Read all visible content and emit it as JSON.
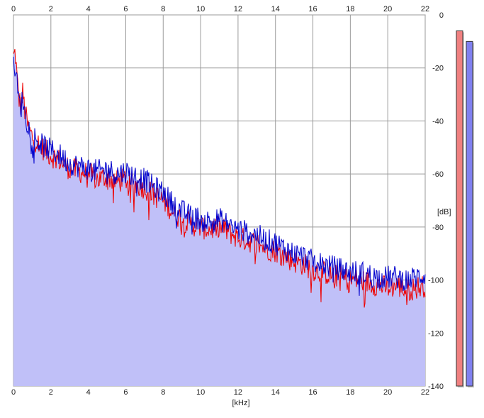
{
  "chart_data": {
    "type": "line",
    "title": "",
    "xlabel": "[kHz]",
    "ylabel": "[dB]",
    "xlim": [
      0,
      22
    ],
    "ylim": [
      -140,
      0
    ],
    "x_ticks": [
      "0",
      "2",
      "4",
      "6",
      "8",
      "10",
      "12",
      "14",
      "16",
      "18",
      "20",
      "22"
    ],
    "y_ticks": [
      "0",
      "-20",
      "-40",
      "-60",
      "-80",
      "-100",
      "-120",
      "-140"
    ],
    "grid": true,
    "fill_color": "#c0c0f8",
    "series": [
      {
        "color": "#ee0000",
        "x": [
          0.0,
          0.1,
          0.2,
          0.3,
          0.4,
          0.5,
          0.6,
          0.8,
          1.0,
          1.5,
          2.0,
          2.5,
          3.0,
          3.5,
          4.0,
          4.5,
          5.0,
          5.5,
          6.0,
          6.5,
          7.0,
          7.5,
          8.0,
          8.5,
          9.0,
          9.5,
          10.0,
          10.5,
          11.0,
          11.5,
          12.0,
          12.5,
          13.0,
          13.5,
          14.0,
          14.5,
          15.0,
          15.5,
          16.0,
          16.5,
          17.0,
          17.5,
          18.0,
          18.5,
          19.0,
          19.5,
          20.0,
          20.5,
          21.0,
          21.5,
          22.0
        ],
        "y": [
          -16,
          -14,
          -25,
          -32,
          -34,
          -29,
          -36,
          -43,
          -46,
          -50,
          -53,
          -55,
          -58,
          -59,
          -60,
          -62,
          -61,
          -63,
          -62,
          -64,
          -65,
          -68,
          -70,
          -74,
          -77,
          -79,
          -80,
          -81,
          -80,
          -82,
          -84,
          -85,
          -86,
          -88,
          -89,
          -91,
          -93,
          -94,
          -96,
          -97,
          -98,
          -99,
          -100,
          -100,
          -101,
          -102,
          -103,
          -102,
          -104,
          -103,
          -102
        ]
      },
      {
        "color": "#0000cc",
        "x": [
          0.0,
          0.1,
          0.2,
          0.3,
          0.4,
          0.5,
          0.6,
          0.8,
          1.0,
          1.5,
          2.0,
          2.5,
          3.0,
          3.5,
          4.0,
          4.5,
          5.0,
          5.5,
          6.0,
          6.5,
          7.0,
          7.5,
          8.0,
          8.5,
          9.0,
          9.5,
          10.0,
          10.5,
          11.0,
          11.5,
          12.0,
          12.5,
          13.0,
          13.5,
          14.0,
          14.5,
          15.0,
          15.5,
          16.0,
          16.5,
          17.0,
          17.5,
          18.0,
          18.5,
          19.0,
          19.5,
          20.0,
          20.5,
          21.0,
          21.5,
          22.0
        ],
        "y": [
          -20,
          -19,
          -27,
          -33,
          -35,
          -31,
          -37,
          -42,
          -45,
          -49,
          -51,
          -53,
          -56,
          -57,
          -58,
          -59,
          -58,
          -60,
          -59,
          -61,
          -62,
          -65,
          -67,
          -71,
          -74,
          -76,
          -77,
          -78,
          -77,
          -79,
          -81,
          -82,
          -83,
          -85,
          -86,
          -88,
          -90,
          -91,
          -93,
          -94,
          -95,
          -96,
          -97,
          -97,
          -98,
          -99,
          -99,
          -99,
          -100,
          -99,
          -98
        ]
      }
    ],
    "level_meters": [
      {
        "color": "#f08080",
        "value_db": -6
      },
      {
        "color": "#8080f0",
        "value_db": -10
      }
    ]
  }
}
